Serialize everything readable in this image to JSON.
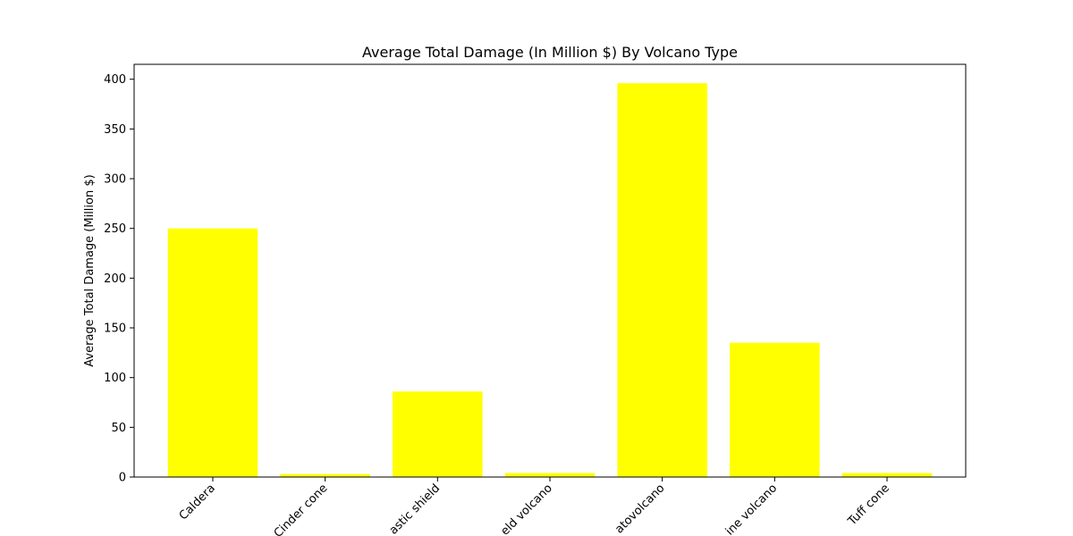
{
  "chart_data": {
    "type": "bar",
    "title": "Average Total Damage (In Million $) By Volcano Type",
    "xlabel": "",
    "ylabel": "Average Total Damage (Million $)",
    "categories": [
      "Caldera",
      "Cinder cone",
      "Complex volcano / Plastic shield",
      "Shield volcano",
      "Stratovolcano",
      "Submarine volcano",
      "Tuff cone"
    ],
    "category_labels_visible": [
      "Caldera",
      "Cinder cone",
      "astic shield",
      "eld volcano",
      "atovolcano",
      "ine volcano",
      "Tuff cone"
    ],
    "values": [
      250,
      3,
      86,
      4,
      396,
      135,
      4
    ],
    "ylim": [
      0,
      415
    ],
    "yticks": [
      0,
      50,
      100,
      150,
      200,
      250,
      300,
      350,
      400
    ],
    "grid": false,
    "legend": "none",
    "bar_color": "#ffff00"
  }
}
